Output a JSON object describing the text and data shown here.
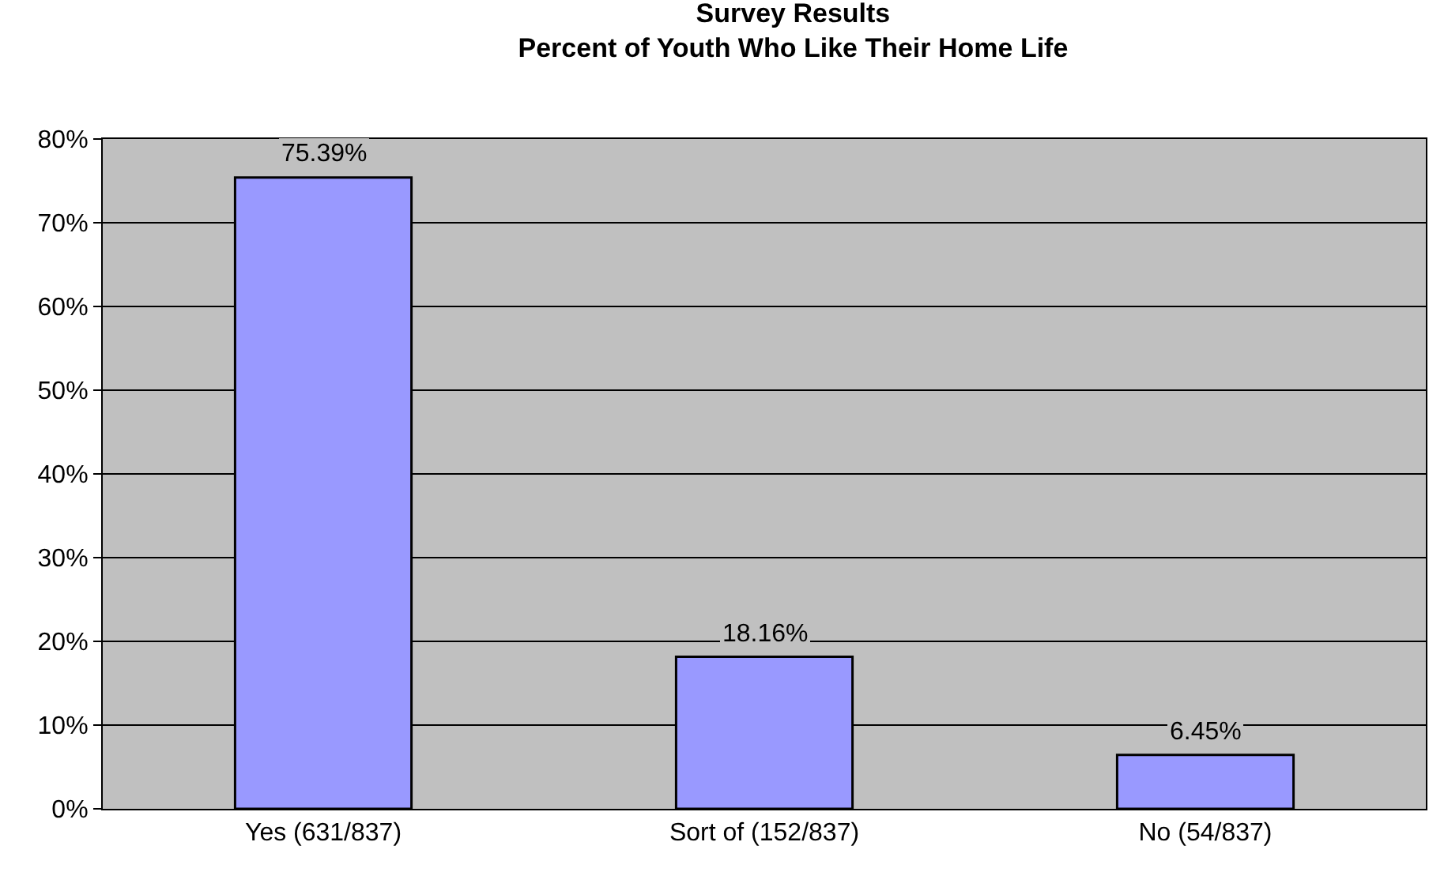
{
  "chart_data": {
    "type": "bar",
    "title": "Survey Results",
    "subtitle": "Percent of Youth Who Like Their Home Life",
    "categories": [
      "Yes (631/837)",
      "Sort of (152/837)",
      "No (54/837)"
    ],
    "values": [
      75.39,
      18.16,
      6.45
    ],
    "color": "#9999ff",
    "value_labels": [
      "75.39%",
      "18.16%",
      "6.45%"
    ],
    "ylim": [
      0,
      80
    ],
    "yticks": [
      {
        "value": 0,
        "label": "0%"
      },
      {
        "value": 10,
        "label": "10%"
      },
      {
        "value": 20,
        "label": "20%"
      },
      {
        "value": 30,
        "label": "30%"
      },
      {
        "value": 40,
        "label": "40%"
      },
      {
        "value": 50,
        "label": "50%"
      },
      {
        "value": 60,
        "label": "60%"
      },
      {
        "value": 70,
        "label": "70%"
      },
      {
        "value": 80,
        "label": "80%"
      }
    ],
    "grid": "y",
    "legend": false
  }
}
